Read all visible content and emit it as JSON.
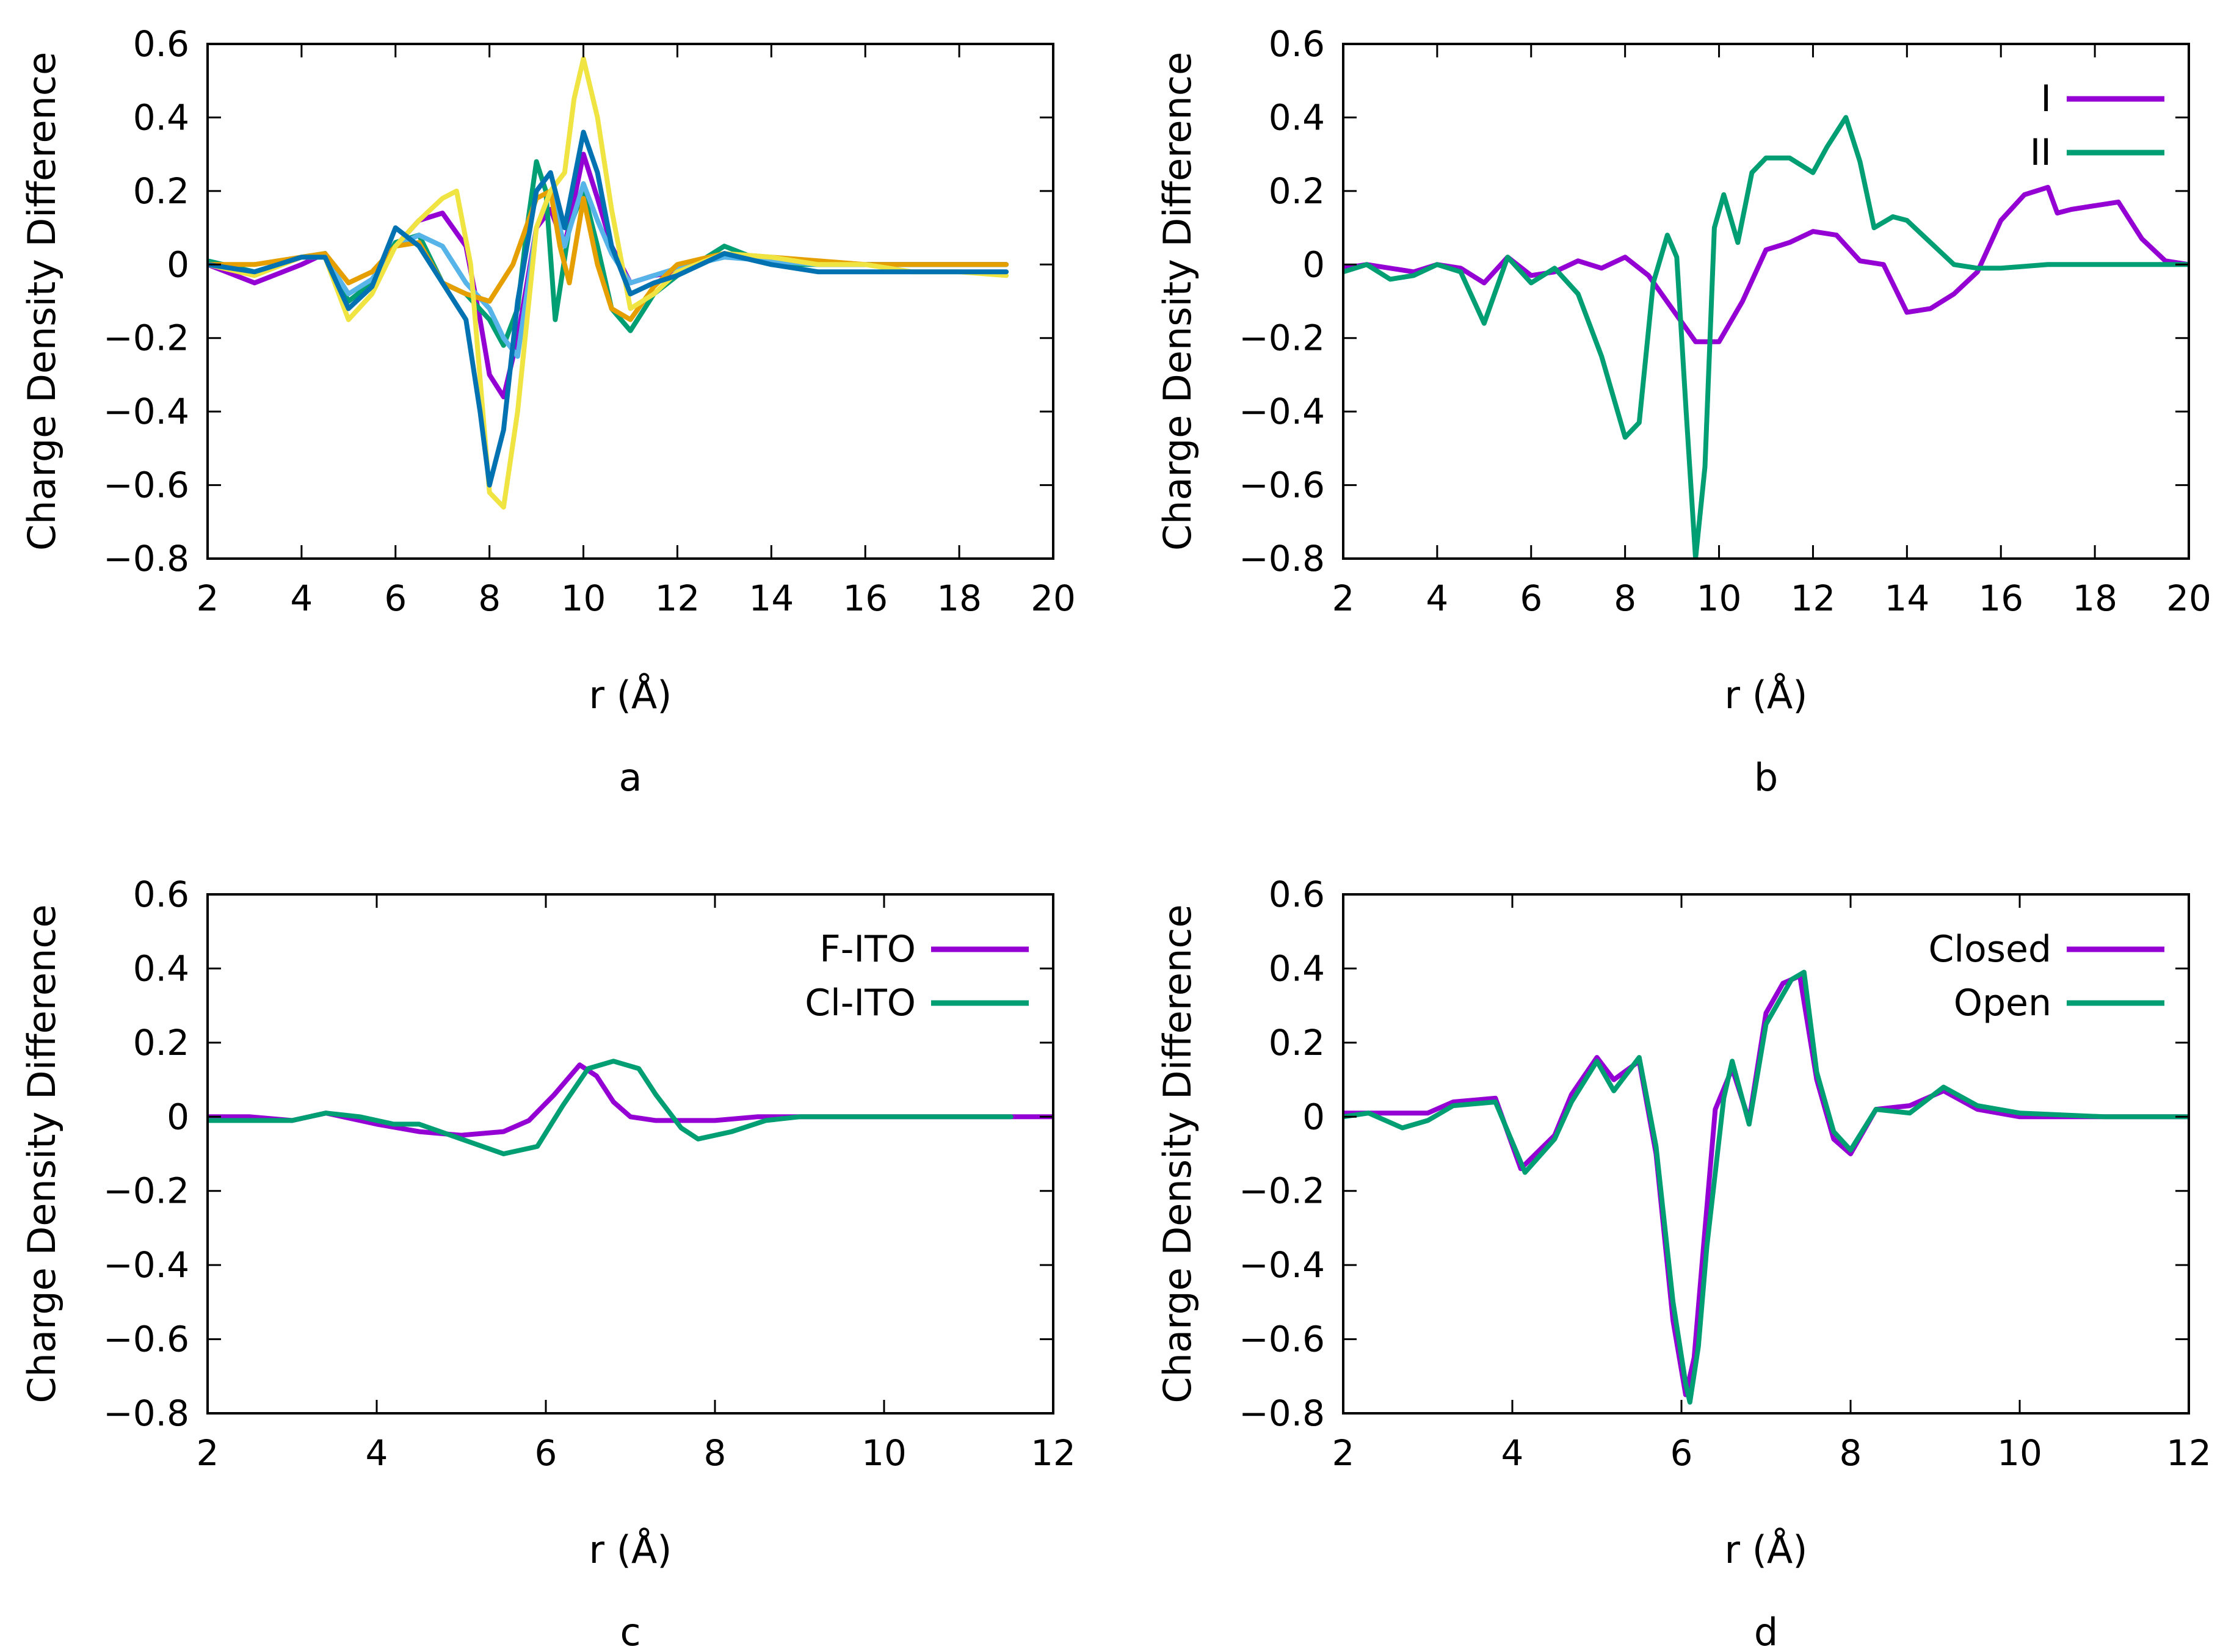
{
  "chart_data": [
    {
      "id": "a",
      "type": "line",
      "panel_label": "a",
      "xlabel": "r (Å)",
      "ylabel": "Charge Density Difference",
      "xlim": [
        2,
        20
      ],
      "ylim": [
        -0.8,
        0.6
      ],
      "xticks": [
        2,
        4,
        6,
        8,
        10,
        12,
        14,
        16,
        18,
        20
      ],
      "yticks": [
        0.6,
        0.4,
        0.2,
        0,
        -0.2,
        -0.4,
        -0.6,
        -0.8
      ],
      "legend": null,
      "series": [
        {
          "name": "",
          "color": "#9400d3",
          "x": [
            2,
            3,
            4,
            4.5,
            5,
            5.5,
            6,
            6.5,
            7,
            7.5,
            7.8,
            8,
            8.3,
            8.6,
            9,
            9.3,
            9.6,
            10,
            10.3,
            10.6,
            11,
            11.5,
            12,
            13,
            14,
            15,
            16,
            18,
            19
          ],
          "y": [
            0,
            -0.05,
            0,
            0.03,
            -0.1,
            -0.05,
            0.05,
            0.12,
            0.14,
            0.05,
            -0.15,
            -0.3,
            -0.36,
            -0.2,
            0.1,
            0.15,
            0.05,
            0.3,
            0.18,
            0.05,
            -0.05,
            -0.03,
            -0.02,
            0.03,
            0.01,
            0,
            0,
            0,
            0
          ]
        },
        {
          "name": "",
          "color": "#009e73",
          "x": [
            2,
            3,
            4,
            4.5,
            5,
            5.5,
            6,
            6.5,
            7,
            7.5,
            8,
            8.3,
            8.6,
            8.8,
            9,
            9.2,
            9.4,
            9.7,
            10,
            10.3,
            10.6,
            11,
            11.5,
            12,
            13,
            14,
            15,
            16,
            18,
            19
          ],
          "y": [
            0.01,
            -0.02,
            0.02,
            0.03,
            -0.1,
            -0.05,
            0.06,
            0.08,
            -0.05,
            -0.08,
            -0.15,
            -0.22,
            -0.12,
            0.1,
            0.28,
            0.2,
            -0.15,
            0.1,
            0.2,
            0.05,
            -0.12,
            -0.18,
            -0.08,
            -0.03,
            0.05,
            0,
            0,
            0,
            0,
            0
          ]
        },
        {
          "name": "",
          "color": "#56b4e9",
          "x": [
            2,
            3,
            4,
            4.5,
            5,
            5.5,
            6,
            6.5,
            7,
            7.5,
            8,
            8.3,
            8.6,
            9,
            9.3,
            9.6,
            10,
            10.3,
            10.6,
            11,
            11.5,
            12,
            13,
            14,
            15,
            16,
            18,
            19
          ],
          "y": [
            0,
            -0.02,
            0.02,
            0.02,
            -0.08,
            -0.04,
            0.05,
            0.08,
            0.05,
            -0.05,
            -0.12,
            -0.2,
            -0.25,
            0.1,
            0.2,
            0.05,
            0.22,
            0.12,
            0.03,
            -0.05,
            -0.03,
            -0.01,
            0.02,
            0.01,
            0,
            0,
            0,
            0
          ]
        },
        {
          "name": "",
          "color": "#e69f00",
          "x": [
            2,
            3,
            4,
            4.5,
            5,
            5.5,
            6,
            6.5,
            7,
            7.5,
            8,
            8.5,
            9,
            9.3,
            9.5,
            9.7,
            10,
            10.3,
            10.6,
            11,
            11.5,
            12,
            13,
            14,
            15,
            16,
            18,
            19
          ],
          "y": [
            0,
            0,
            0.02,
            0.03,
            -0.05,
            -0.02,
            0.05,
            0.06,
            -0.05,
            -0.08,
            -0.1,
            0.0,
            0.18,
            0.2,
            0.05,
            -0.05,
            0.18,
            0.0,
            -0.12,
            -0.15,
            -0.06,
            0.0,
            0.03,
            0.02,
            0.01,
            0,
            0,
            0
          ]
        },
        {
          "name": "",
          "color": "#f0e442",
          "x": [
            2,
            3,
            4,
            4.5,
            5,
            5.5,
            6,
            6.5,
            7,
            7.3,
            7.6,
            8,
            8.3,
            8.6,
            9,
            9.3,
            9.6,
            9.8,
            10,
            10.3,
            10.6,
            11,
            11.5,
            12,
            13,
            14,
            15,
            16,
            17,
            18,
            19
          ],
          "y": [
            0,
            -0.03,
            0.02,
            0.02,
            -0.15,
            -0.08,
            0.05,
            0.12,
            0.18,
            0.2,
            0.0,
            -0.62,
            -0.66,
            -0.4,
            0.1,
            0.2,
            0.25,
            0.45,
            0.56,
            0.4,
            0.15,
            -0.12,
            -0.08,
            -0.02,
            0.03,
            0.02,
            0.0,
            0.0,
            -0.02,
            -0.02,
            -0.03
          ]
        },
        {
          "name": "",
          "color": "#0072b2",
          "x": [
            2,
            3,
            4,
            4.5,
            5,
            5.5,
            6,
            6.5,
            7,
            7.5,
            7.8,
            8,
            8.3,
            8.6,
            9,
            9.3,
            9.6,
            10,
            10.3,
            10.6,
            11,
            11.5,
            12,
            13,
            14,
            15,
            16,
            18,
            19
          ],
          "y": [
            0,
            -0.02,
            0.02,
            0.02,
            -0.12,
            -0.06,
            0.1,
            0.05,
            -0.05,
            -0.15,
            -0.4,
            -0.6,
            -0.45,
            -0.1,
            0.2,
            0.25,
            0.1,
            0.36,
            0.25,
            0.05,
            -0.08,
            -0.05,
            -0.03,
            0.03,
            0,
            -0.02,
            -0.02,
            -0.02,
            -0.02
          ]
        }
      ]
    },
    {
      "id": "b",
      "type": "line",
      "panel_label": "b",
      "xlabel": "r (Å)",
      "ylabel": "Charge Density Difference",
      "xlim": [
        2,
        20
      ],
      "ylim": [
        -0.8,
        0.6
      ],
      "xticks": [
        2,
        4,
        6,
        8,
        10,
        12,
        14,
        16,
        18,
        20
      ],
      "yticks": [
        0.6,
        0.4,
        0.2,
        0,
        -0.2,
        -0.4,
        -0.6,
        -0.8
      ],
      "legend": "top-right",
      "series": [
        {
          "name": "I",
          "color": "#9400d3",
          "x": [
            2,
            2.5,
            3,
            3.5,
            4,
            4.5,
            5,
            5.5,
            6,
            6.5,
            7,
            7.5,
            8,
            8.5,
            9,
            9.5,
            10,
            10.5,
            11,
            11.5,
            12,
            12.5,
            13,
            13.5,
            14,
            14.5,
            15,
            15.5,
            16,
            16.5,
            17,
            17.2,
            17.5,
            18,
            18.5,
            19,
            19.5,
            20
          ],
          "y": [
            -0.01,
            0.0,
            -0.01,
            -0.02,
            0.0,
            -0.01,
            -0.05,
            0.02,
            -0.03,
            -0.02,
            0.01,
            -0.01,
            0.02,
            -0.03,
            -0.12,
            -0.21,
            -0.21,
            -0.1,
            0.04,
            0.06,
            0.09,
            0.08,
            0.01,
            0.0,
            -0.13,
            -0.12,
            -0.08,
            -0.02,
            0.12,
            0.19,
            0.21,
            0.14,
            0.15,
            0.16,
            0.17,
            0.07,
            0.01,
            0.0
          ]
        },
        {
          "name": "II",
          "color": "#009e73",
          "x": [
            2,
            2.5,
            3,
            3.5,
            4,
            4.5,
            5,
            5.5,
            6,
            6.5,
            7,
            7.5,
            8,
            8.3,
            8.6,
            8.9,
            9.1,
            9.3,
            9.5,
            9.7,
            9.9,
            10.1,
            10.4,
            10.7,
            11,
            11.5,
            12,
            12.3,
            12.7,
            13,
            13.3,
            13.7,
            14,
            14.5,
            15,
            15.5,
            16,
            17,
            18,
            19,
            20
          ],
          "y": [
            -0.02,
            0.0,
            -0.04,
            -0.03,
            0.0,
            -0.02,
            -0.16,
            0.02,
            -0.05,
            -0.01,
            -0.08,
            -0.25,
            -0.47,
            -0.43,
            -0.05,
            0.08,
            0.02,
            -0.4,
            -0.8,
            -0.55,
            0.1,
            0.19,
            0.06,
            0.25,
            0.29,
            0.29,
            0.25,
            0.32,
            0.4,
            0.28,
            0.1,
            0.13,
            0.12,
            0.06,
            0.0,
            -0.01,
            -0.01,
            0.0,
            0.0,
            0.0,
            0.0
          ]
        }
      ]
    },
    {
      "id": "c",
      "type": "line",
      "panel_label": "c",
      "xlabel": "r (Å)",
      "ylabel": "Charge Density Difference",
      "xlim": [
        2,
        12
      ],
      "ylim": [
        -0.8,
        0.6
      ],
      "xticks": [
        2,
        4,
        6,
        8,
        10,
        12
      ],
      "yticks": [
        0.6,
        0.4,
        0.2,
        0,
        -0.2,
        -0.4,
        -0.6,
        -0.8
      ],
      "legend": "top-right",
      "series": [
        {
          "name": "F-ITO",
          "color": "#9400d3",
          "x": [
            2,
            2.5,
            3,
            3.4,
            4,
            4.5,
            5,
            5.5,
            5.8,
            6.1,
            6.4,
            6.6,
            6.8,
            7,
            7.3,
            7.6,
            8,
            8.5,
            9,
            10,
            11,
            11.5,
            12
          ],
          "y": [
            0.0,
            0.0,
            -0.01,
            0.01,
            -0.02,
            -0.04,
            -0.05,
            -0.04,
            -0.01,
            0.06,
            0.14,
            0.11,
            0.04,
            0.0,
            -0.01,
            -0.01,
            -0.01,
            0.0,
            0.0,
            0.0,
            0.0,
            0.0,
            0.0
          ]
        },
        {
          "name": "Cl-ITO",
          "color": "#009e73",
          "x": [
            2,
            2.5,
            3,
            3.4,
            3.8,
            4.2,
            4.5,
            5,
            5.5,
            5.9,
            6.2,
            6.5,
            6.8,
            7.1,
            7.3,
            7.6,
            7.8,
            8.2,
            8.6,
            9,
            10,
            11,
            11.5
          ],
          "y": [
            -0.01,
            -0.01,
            -0.01,
            0.01,
            0.0,
            -0.02,
            -0.02,
            -0.06,
            -0.1,
            -0.08,
            0.03,
            0.13,
            0.15,
            0.13,
            0.06,
            -0.03,
            -0.06,
            -0.04,
            -0.01,
            0.0,
            0.0,
            0.0,
            0.0
          ]
        }
      ]
    },
    {
      "id": "d",
      "type": "line",
      "panel_label": "d",
      "xlabel": "r (Å)",
      "ylabel": "Charge Density Difference",
      "xlim": [
        2,
        12
      ],
      "ylim": [
        -0.8,
        0.6
      ],
      "xticks": [
        2,
        4,
        6,
        8,
        10,
        12
      ],
      "yticks": [
        0.6,
        0.4,
        0.2,
        0,
        -0.2,
        -0.4,
        -0.6,
        -0.8
      ],
      "legend": "top-right",
      "series": [
        {
          "name": "Closed",
          "color": "#9400d3",
          "x": [
            2,
            2.5,
            3,
            3.3,
            3.8,
            4.1,
            4.5,
            4.7,
            5.0,
            5.2,
            5.5,
            5.7,
            5.9,
            6.05,
            6.15,
            6.25,
            6.4,
            6.6,
            6.8,
            7.0,
            7.2,
            7.4,
            7.6,
            7.8,
            8.0,
            8.3,
            8.7,
            9.1,
            9.5,
            10,
            11,
            12
          ],
          "y": [
            0.01,
            0.01,
            0.01,
            0.04,
            0.05,
            -0.14,
            -0.05,
            0.06,
            0.16,
            0.1,
            0.15,
            -0.1,
            -0.55,
            -0.75,
            -0.65,
            -0.38,
            0.02,
            0.13,
            -0.01,
            0.28,
            0.36,
            0.38,
            0.1,
            -0.06,
            -0.1,
            0.02,
            0.03,
            0.07,
            0.02,
            0.0,
            0.0,
            0.0
          ]
        },
        {
          "name": "Open",
          "color": "#009e73",
          "x": [
            2,
            2.3,
            2.7,
            3,
            3.3,
            3.8,
            4.15,
            4.5,
            4.7,
            5.0,
            5.2,
            5.5,
            5.7,
            5.9,
            6.05,
            6.1,
            6.2,
            6.3,
            6.5,
            6.6,
            6.8,
            7.0,
            7.3,
            7.45,
            7.6,
            7.8,
            8.0,
            8.3,
            8.7,
            9.1,
            9.5,
            10,
            11,
            12
          ],
          "y": [
            0.0,
            0.01,
            -0.03,
            -0.01,
            0.03,
            0.04,
            -0.15,
            -0.06,
            0.04,
            0.15,
            0.07,
            0.16,
            -0.08,
            -0.5,
            -0.72,
            -0.77,
            -0.62,
            -0.35,
            0.05,
            0.15,
            -0.02,
            0.25,
            0.37,
            0.39,
            0.12,
            -0.04,
            -0.09,
            0.02,
            0.01,
            0.08,
            0.03,
            0.01,
            0.0,
            0.0
          ]
        }
      ]
    }
  ]
}
